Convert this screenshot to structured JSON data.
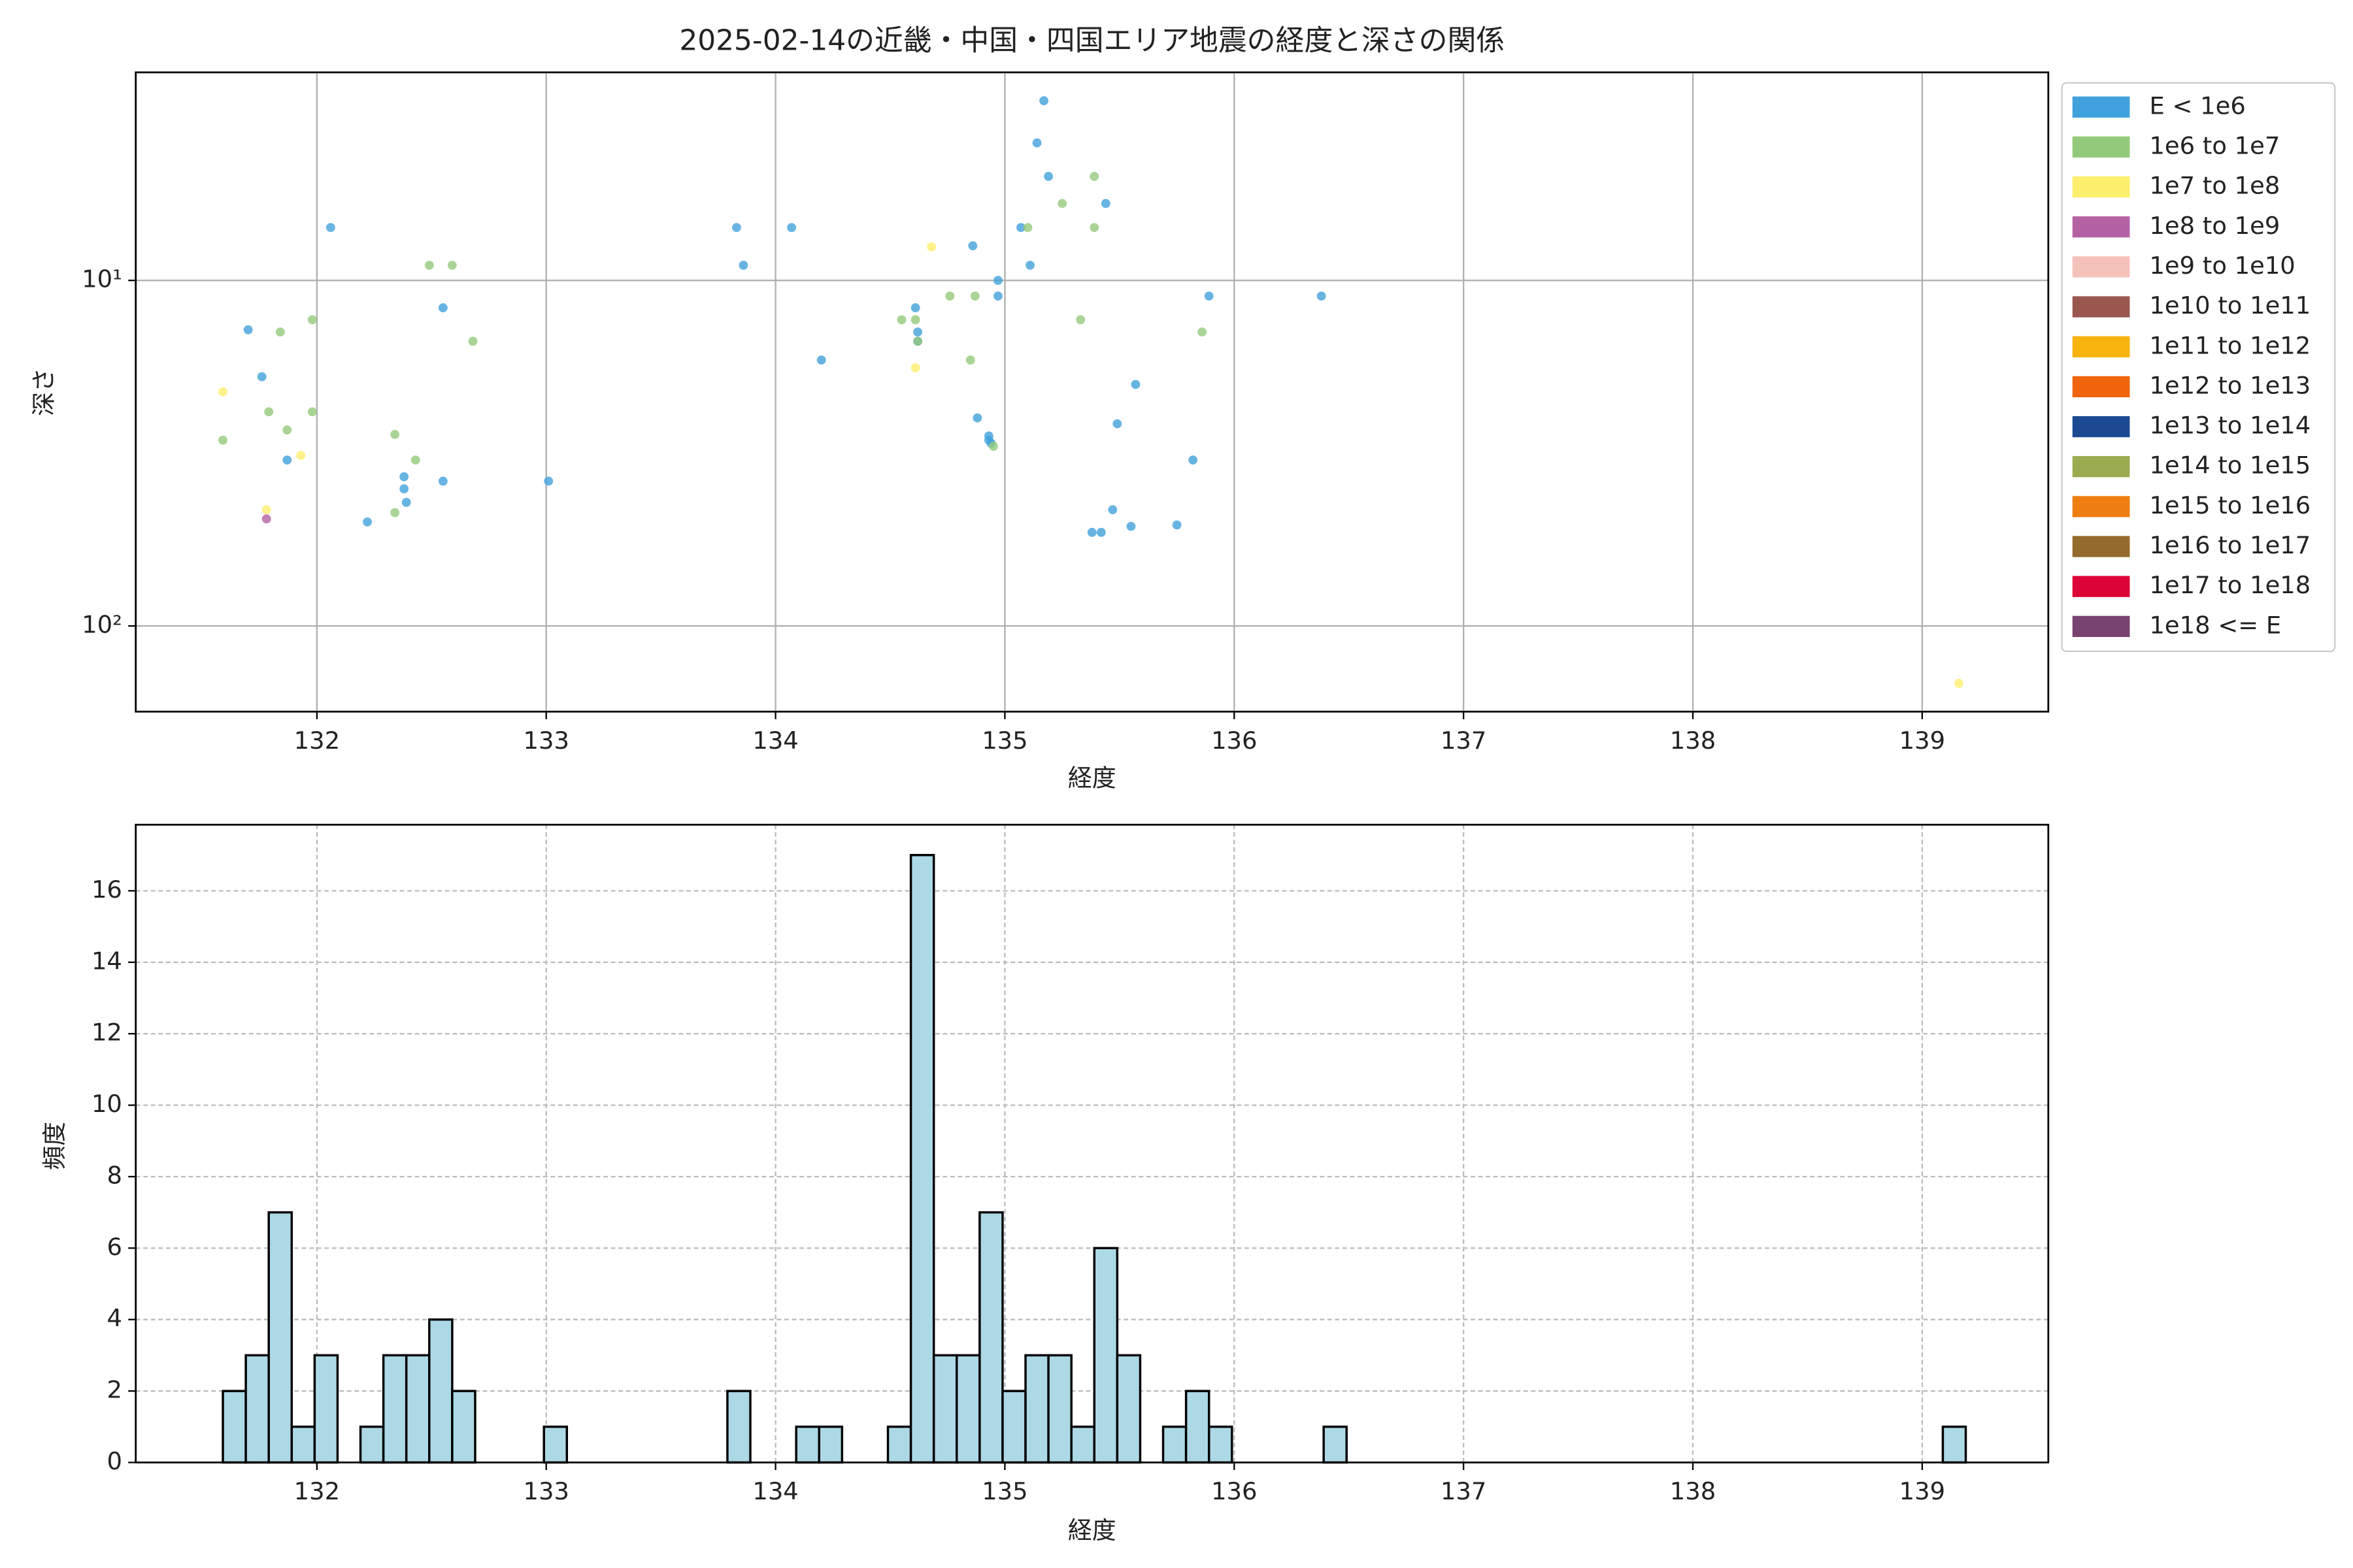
{
  "chart_data": [
    {
      "type": "scatter",
      "title": "2025-02-14の近畿・中国・四国エリア地震の経度と深さの関係",
      "xlabel": "経度",
      "ylabel": "深さ",
      "xlim": [
        131.21,
        139.55
      ],
      "xticks": [
        132,
        133,
        134,
        135,
        136,
        137,
        138,
        139
      ],
      "ylim": [
        2.5,
        177
      ],
      "y_log": true,
      "y_inverted": true,
      "yticks": [
        {
          "value": 10,
          "label": "10¹"
        },
        {
          "value": 100,
          "label": "10²"
        }
      ],
      "grid": true,
      "legend": "outside-right",
      "series": [
        {
          "name": "E < 1e6",
          "color": "#41a1dc",
          "x": [
            131.7,
            131.76,
            132.06,
            131.87,
            132.38,
            132.38,
            132.39,
            132.22,
            132.55,
            132.55,
            133.01,
            133.83,
            133.86,
            134.07,
            134.2,
            134.61,
            134.62,
            134.62,
            134.86,
            134.88,
            134.93,
            134.93,
            134.94,
            134.97,
            134.97,
            135.07,
            135.11,
            135.14,
            135.17,
            135.19,
            135.44,
            135.47,
            135.49,
            135.55,
            135.57,
            135.38,
            135.42,
            135.75,
            135.82,
            135.89,
            136.38
          ],
          "values": [
            13.9,
            19.0,
            7.03,
            33.1,
            37.0,
            40.1,
            43.9,
            50.0,
            38.1,
            12.0,
            38.1,
            7.03,
            9.04,
            7.03,
            17.0,
            12.0,
            14.1,
            15.0,
            7.94,
            25.0,
            28.2,
            29.0,
            29.6,
            10,
            11.1,
            7.03,
            9.04,
            4.0,
            3.02,
            5.0,
            5.99,
            46.1,
            26.0,
            51.5,
            20.0,
            53.6,
            53.6,
            51.0,
            33.1,
            11.1,
            11.1
          ]
        },
        {
          "name": "1e6 to 1e7",
          "color": "#93c97a",
          "x": [
            131.59,
            131.79,
            131.84,
            131.87,
            131.98,
            131.98,
            132.34,
            132.34,
            132.43,
            132.49,
            132.59,
            132.68,
            134.55,
            134.61,
            134.62,
            134.76,
            134.85,
            134.87,
            134.95,
            135.1,
            135.25,
            135.33,
            135.39,
            135.39,
            135.86
          ],
          "values": [
            29.0,
            24.0,
            14.1,
            27.1,
            13.0,
            24.0,
            27.9,
            47.0,
            33.1,
            9.04,
            9.04,
            15.0,
            13.0,
            13.0,
            15.0,
            11.1,
            17.0,
            11.1,
            30.2,
            7.03,
            5.99,
            13.0,
            5.0,
            7.03,
            14.1
          ]
        },
        {
          "name": "1e7 to 1e8",
          "color": "#fdee6e",
          "x": [
            131.59,
            131.78,
            131.93,
            134.61,
            134.68,
            139.16
          ],
          "values": [
            21.0,
            46.1,
            32.1,
            17.9,
            8.0,
            146.6
          ]
        },
        {
          "name": "1e8 to 1e9",
          "color": "#b562a4",
          "x": [
            131.78
          ],
          "values": [
            49.0
          ]
        },
        {
          "name": "1e9 to 1e10",
          "color": "#f4c2bb",
          "x": [],
          "values": []
        },
        {
          "name": "1e10 to 1e11",
          "color": "#9a5750",
          "x": [],
          "values": []
        },
        {
          "name": "1e11 to 1e12",
          "color": "#f9b30f",
          "x": [],
          "values": []
        },
        {
          "name": "1e12 to 1e13",
          "color": "#ef640d",
          "x": [],
          "values": []
        },
        {
          "name": "1e13 to 1e14",
          "color": "#1c4a92",
          "x": [],
          "values": []
        },
        {
          "name": "1e14 to 1e15",
          "color": "#9bab50",
          "x": [],
          "values": []
        },
        {
          "name": "1e15 to 1e16",
          "color": "#ef7e12",
          "x": [],
          "values": []
        },
        {
          "name": "1e16 to 1e17",
          "color": "#946b2c",
          "x": [],
          "values": []
        },
        {
          "name": "1e17 to 1e18",
          "color": "#dd0437",
          "x": [],
          "values": []
        },
        {
          "name": "1e18 <= E",
          "color": "#784370",
          "x": [],
          "values": []
        }
      ]
    },
    {
      "type": "histogram",
      "xlabel": "経度",
      "ylabel": "頻度",
      "xlim": [
        131.21,
        139.55
      ],
      "xticks": [
        132,
        133,
        134,
        135,
        136,
        137,
        138,
        139
      ],
      "ylim": [
        0,
        17.85
      ],
      "yticks": [
        0,
        2,
        4,
        6,
        8,
        10,
        12,
        14,
        16
      ],
      "grid": true,
      "color": "#add8e6",
      "edgecolor": "#000000",
      "bins": [
        131.59,
        131.69,
        131.79,
        131.89,
        131.99,
        132.09,
        132.19,
        132.29,
        132.39,
        132.49,
        132.59,
        132.69,
        132.79,
        132.89,
        132.99,
        133.09,
        133.19,
        133.29,
        133.39,
        133.49,
        133.59,
        133.69,
        133.79,
        133.89,
        133.99,
        134.09,
        134.19,
        134.29,
        134.39,
        134.49,
        134.59,
        134.69,
        134.79,
        134.89,
        134.99,
        135.09,
        135.19,
        135.29,
        135.39,
        135.49,
        135.59,
        135.69,
        135.79,
        135.89,
        135.99,
        136.09,
        136.19,
        136.29,
        136.39,
        136.49,
        136.59,
        136.69,
        136.79,
        136.89,
        136.99,
        137.09,
        137.19,
        137.29,
        137.39,
        137.49,
        137.59,
        137.69,
        137.79,
        137.89,
        137.99,
        138.09,
        138.19,
        138.29,
        138.39,
        138.49,
        138.59,
        138.69,
        138.79,
        138.89,
        138.99,
        139.09,
        139.19
      ],
      "counts": [
        2,
        3,
        7,
        1,
        3,
        0,
        1,
        3,
        3,
        4,
        2,
        0,
        0,
        0,
        1,
        0,
        0,
        0,
        0,
        0,
        0,
        0,
        2,
        0,
        0,
        1,
        1,
        0,
        0,
        1,
        17,
        3,
        3,
        7,
        2,
        3,
        3,
        1,
        6,
        3,
        0,
        1,
        2,
        1,
        0,
        0,
        0,
        0,
        1,
        0,
        0,
        0,
        0,
        0,
        0,
        0,
        0,
        0,
        0,
        0,
        0,
        0,
        0,
        0,
        0,
        0,
        0,
        0,
        0,
        0,
        0,
        0,
        0,
        0,
        0,
        1
      ]
    }
  ]
}
